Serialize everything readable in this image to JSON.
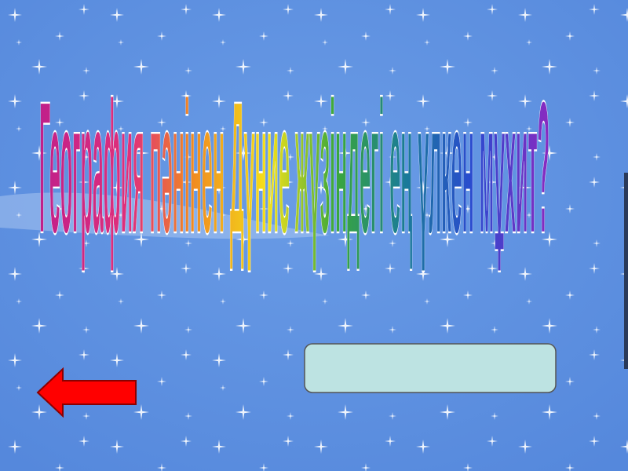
{
  "slide": {
    "title": "География пәнінен  Дүние жүзіндегі ең үлкен мұхит?"
  }
}
